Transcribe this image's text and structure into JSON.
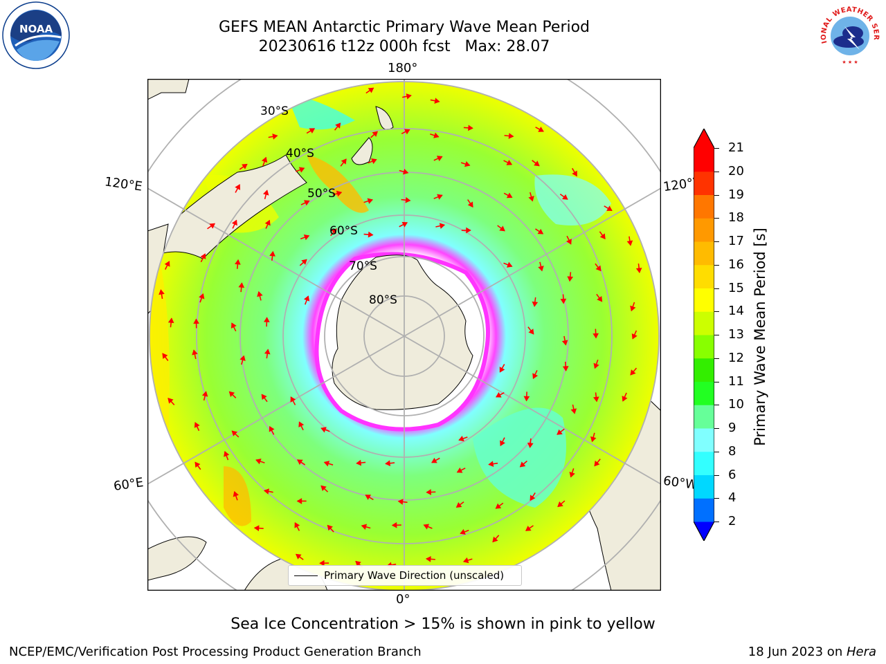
{
  "title": {
    "line1": "GEFS MEAN Antarctic Primary Wave Mean Period",
    "line2": "20230616 t12z 000h fcst   Max: 28.07"
  },
  "map": {
    "projection": "south-polar-stereographic",
    "longitude_labels": {
      "top": "180°",
      "bottom": "0°",
      "upper_left": "120°E",
      "lower_left": "60°E",
      "upper_right": "120°W",
      "lower_right": "60°W"
    },
    "latitude_labels": [
      "30°S",
      "40°S",
      "50°S",
      "60°S",
      "70°S",
      "80°S"
    ],
    "colors": {
      "land": "#efecdc",
      "ocean_fill": "#7dff7d",
      "sea_ice": [
        "#ff33ff",
        "#ffcc55"
      ],
      "vectors": "#ff0000",
      "graticule": "#b0b0b0"
    }
  },
  "legend": {
    "label": "Primary Wave Direction (unscaled)"
  },
  "colorbar": {
    "label": "Primary Wave Mean Period [s]",
    "ticks": [
      "2",
      "4",
      "6",
      "8",
      "9",
      "10",
      "11",
      "12",
      "13",
      "14",
      "15",
      "16",
      "17",
      "18",
      "19",
      "20",
      "21"
    ],
    "colors": [
      "#0000ff",
      "#0070ff",
      "#00d8ff",
      "#33ffff",
      "#80ffff",
      "#66ff99",
      "#22ff22",
      "#33ee00",
      "#88ff00",
      "#ccff00",
      "#ffff00",
      "#ffdd00",
      "#ffbb00",
      "#ff9900",
      "#ff7700",
      "#ff3300",
      "#ff0000"
    ]
  },
  "note": "Sea Ice Concentration > 15% is shown in pink to yellow",
  "footer": {
    "left": "NCEP/EMC/Verification Post Processing Product Generation Branch",
    "right_text": "18 Jun 2023 on ",
    "right_italic": "Hera"
  },
  "logos": {
    "noaa": {
      "text": "NOAA"
    },
    "nws": {
      "text": "NATIONAL WEATHER SERVICE"
    }
  }
}
